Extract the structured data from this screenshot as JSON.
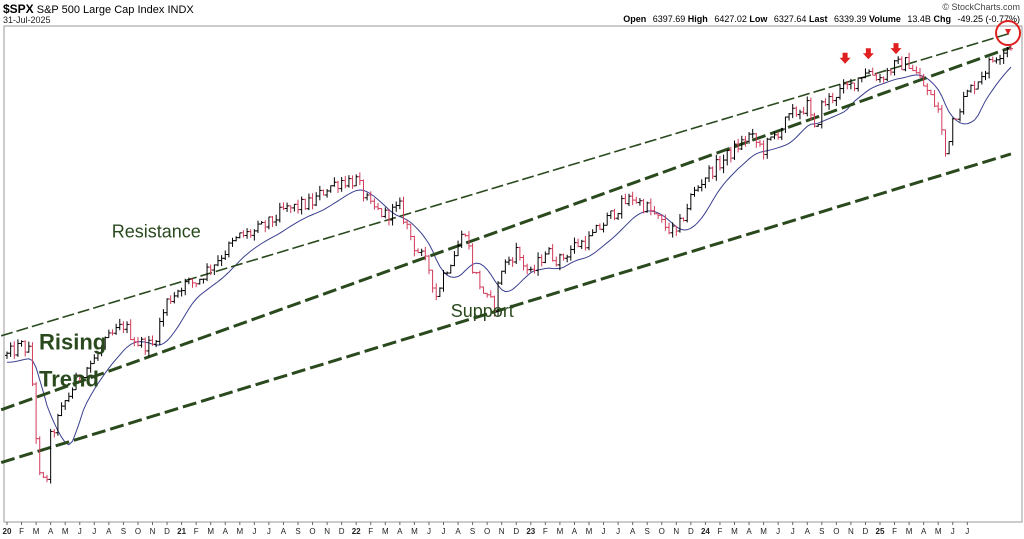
{
  "header": {
    "symbol": "$SPX",
    "name": "S&P 500 Large Cap Index",
    "exchange": "INDX",
    "date": "31-Jul-2025",
    "brand": "© StockCharts.com",
    "open_label": "Open",
    "open": "6397.69",
    "high_label": "High",
    "high": "6427.02",
    "low_label": "Low",
    "low": "6327.64",
    "last_label": "Last",
    "last": "6339.39",
    "volume_label": "Volume",
    "volume": "13.4B",
    "chg_label": "Chg",
    "chg": "-49.25 (-0.77%)"
  },
  "colors": {
    "up": "#000000",
    "down": "#d23a5a",
    "ma": "#3a3f8f",
    "channel": "#2a4a1e",
    "annotation_text": "#2a4a1e",
    "arrows": "#e02020",
    "highlight_circle": "#e02020"
  },
  "chart_data": {
    "type": "ohlc",
    "title": "$SPX S&P 500 Large Cap Index INDX",
    "y_scale": "log",
    "ylim": [
      2250,
      6600
    ],
    "grid": false,
    "x_ticks": [
      "20",
      "F",
      "M",
      "A",
      "M",
      "J",
      "J",
      "A",
      "S",
      "O",
      "N",
      "D",
      "21",
      "F",
      "M",
      "A",
      "M",
      "J",
      "J",
      "A",
      "S",
      "O",
      "N",
      "D",
      "22",
      "F",
      "M",
      "A",
      "M",
      "J",
      "J",
      "A",
      "S",
      "O",
      "N",
      "D",
      "23",
      "F",
      "M",
      "A",
      "M",
      "J",
      "J",
      "A",
      "S",
      "O",
      "N",
      "D",
      "24",
      "F",
      "M",
      "A",
      "M",
      "J",
      "J",
      "A",
      "S",
      "O",
      "N",
      "D",
      "25",
      "F",
      "M",
      "A",
      "M",
      "J",
      "J"
    ],
    "x_tick_bold": [
      "20",
      "21",
      "22",
      "23",
      "24",
      "25"
    ],
    "price_path": [
      {
        "m": 0,
        "v": 3230
      },
      {
        "m": 1,
        "v": 3300
      },
      {
        "m": 1.6,
        "v": 3250
      },
      {
        "m": 2.2,
        "v": 2480
      },
      {
        "m": 2.7,
        "v": 2440
      },
      {
        "m": 3,
        "v": 2700
      },
      {
        "m": 4,
        "v": 2920
      },
      {
        "m": 5,
        "v": 3100
      },
      {
        "m": 6,
        "v": 3200
      },
      {
        "m": 7,
        "v": 3350
      },
      {
        "m": 8,
        "v": 3450
      },
      {
        "m": 9,
        "v": 3320
      },
      {
        "m": 10,
        "v": 3300
      },
      {
        "m": 11,
        "v": 3630
      },
      {
        "m": 12,
        "v": 3760
      },
      {
        "m": 13,
        "v": 3790
      },
      {
        "m": 14,
        "v": 3920
      },
      {
        "m": 15,
        "v": 4050
      },
      {
        "m": 16,
        "v": 4180
      },
      {
        "m": 17,
        "v": 4220
      },
      {
        "m": 18,
        "v": 4300
      },
      {
        "m": 19,
        "v": 4420
      },
      {
        "m": 20,
        "v": 4460
      },
      {
        "m": 21,
        "v": 4500
      },
      {
        "m": 22,
        "v": 4650
      },
      {
        "m": 23,
        "v": 4720
      },
      {
        "m": 24,
        "v": 4720
      },
      {
        "m": 25,
        "v": 4450
      },
      {
        "m": 26,
        "v": 4380
      },
      {
        "m": 27,
        "v": 4450
      },
      {
        "m": 28,
        "v": 4100
      },
      {
        "m": 29,
        "v": 3900
      },
      {
        "m": 29.5,
        "v": 3680
      },
      {
        "m": 30,
        "v": 3850
      },
      {
        "m": 31,
        "v": 4100
      },
      {
        "m": 31.5,
        "v": 4250
      },
      {
        "m": 32,
        "v": 3900
      },
      {
        "m": 33,
        "v": 3640
      },
      {
        "m": 33.5,
        "v": 3600
      },
      {
        "m": 34,
        "v": 3900
      },
      {
        "m": 35,
        "v": 4050
      },
      {
        "m": 36,
        "v": 3840
      },
      {
        "m": 37,
        "v": 4050
      },
      {
        "m": 38,
        "v": 3970
      },
      {
        "m": 39,
        "v": 4100
      },
      {
        "m": 40,
        "v": 4150
      },
      {
        "m": 41,
        "v": 4300
      },
      {
        "m": 42,
        "v": 4450
      },
      {
        "m": 43,
        "v": 4550
      },
      {
        "m": 44,
        "v": 4450
      },
      {
        "m": 45,
        "v": 4300
      },
      {
        "m": 46,
        "v": 4200
      },
      {
        "m": 47,
        "v": 4550
      },
      {
        "m": 48,
        "v": 4770
      },
      {
        "m": 49,
        "v": 4900
      },
      {
        "m": 50,
        "v": 5050
      },
      {
        "m": 51,
        "v": 5200
      },
      {
        "m": 52,
        "v": 5050
      },
      {
        "m": 53,
        "v": 5250
      },
      {
        "m": 54,
        "v": 5450
      },
      {
        "m": 55,
        "v": 5550
      },
      {
        "m": 55.5,
        "v": 5250
      },
      {
        "m": 56,
        "v": 5550
      },
      {
        "m": 57,
        "v": 5700
      },
      {
        "m": 58,
        "v": 5800
      },
      {
        "m": 59,
        "v": 6000
      },
      {
        "m": 60,
        "v": 5900
      },
      {
        "m": 61,
        "v": 6050
      },
      {
        "m": 62,
        "v": 6100
      },
      {
        "m": 63,
        "v": 5800
      },
      {
        "m": 64,
        "v": 5500
      },
      {
        "m": 64.5,
        "v": 5000
      },
      {
        "m": 65,
        "v": 5400
      },
      {
        "m": 66,
        "v": 5700
      },
      {
        "m": 67,
        "v": 5950
      },
      {
        "m": 68,
        "v": 6200
      },
      {
        "m": 69,
        "v": 6340
      }
    ],
    "channel_lines": [
      {
        "name": "upper-resistance",
        "style": "dashed-thin",
        "start": {
          "m": -0.4,
          "v": 3370
        },
        "end": {
          "m": 69,
          "v": 6500
        }
      },
      {
        "name": "resistance",
        "style": "dashed-thick",
        "start": {
          "m": -0.4,
          "v": 2870
        },
        "end": {
          "m": 69,
          "v": 6300
        }
      },
      {
        "name": "support",
        "style": "dashed-thick",
        "start": {
          "m": -0.4,
          "v": 2560
        },
        "end": {
          "m": 69,
          "v": 5000
        }
      }
    ],
    "annotations": [
      {
        "text": "Resistance",
        "m": 7.2,
        "v": 4170,
        "size": "medium"
      },
      {
        "text": "Rising",
        "m": 2.2,
        "v": 3270,
        "size": "large-bold"
      },
      {
        "text": "Trend",
        "m": 2.2,
        "v": 3020,
        "size": "large-bold"
      },
      {
        "text": "Support",
        "m": 30.5,
        "v": 3510,
        "size": "medium"
      }
    ],
    "down_arrows": [
      {
        "m": 57.6,
        "v": 6120
      },
      {
        "m": 59.2,
        "v": 6180
      },
      {
        "m": 61.1,
        "v": 6250
      }
    ],
    "highlight_circle": {
      "m": 68.8,
      "v": 6500
    }
  }
}
